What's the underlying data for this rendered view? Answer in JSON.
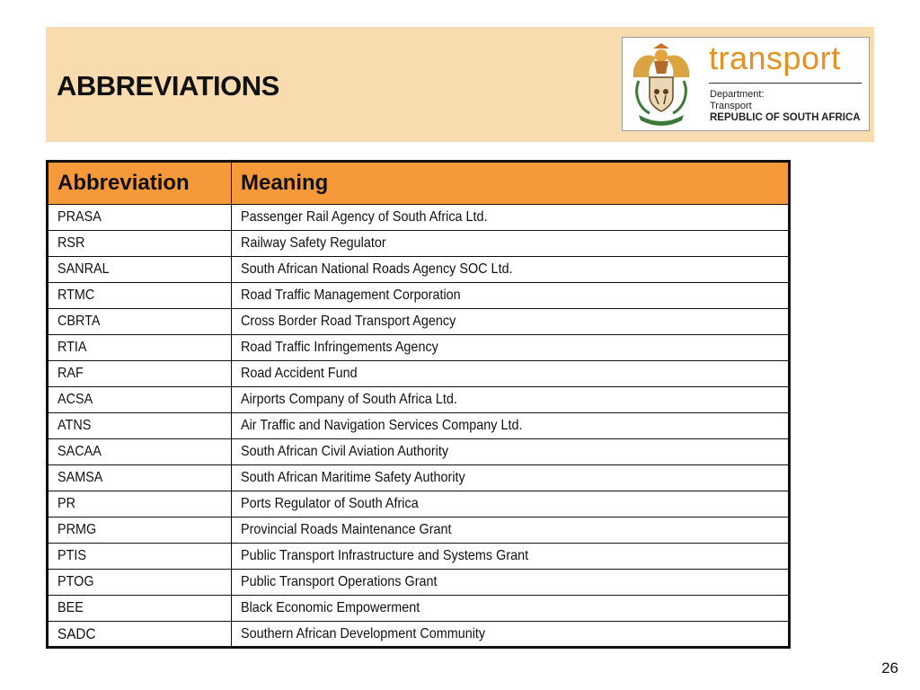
{
  "header": {
    "title": "ABBREVIATIONS"
  },
  "logo": {
    "wordmark": "transport",
    "line1": "Department:",
    "line2": "Transport",
    "line3": "REPUBLIC OF SOUTH AFRICA",
    "colors": {
      "wordmark": "#e69126",
      "band": "#f9dbb0"
    }
  },
  "table": {
    "headers": [
      "Abbreviation",
      "Meaning"
    ],
    "header_color": "#f6993a",
    "rows": [
      {
        "abbr": "PRASA",
        "meaning": "Passenger Rail Agency of South Africa Ltd."
      },
      {
        "abbr": "RSR",
        "meaning": "Railway Safety Regulator"
      },
      {
        "abbr": "SANRAL",
        "meaning": "South African National Roads Agency SOC Ltd."
      },
      {
        "abbr": "RTMC",
        "meaning": "Road Traffic Management Corporation"
      },
      {
        "abbr": "CBRTA",
        "meaning": "Cross Border Road Transport Agency"
      },
      {
        "abbr": "RTIA",
        "meaning": "Road Traffic Infringements Agency"
      },
      {
        "abbr": "RAF",
        "meaning": "Road Accident Fund"
      },
      {
        "abbr": "ACSA",
        "meaning": "Airports Company of South Africa Ltd."
      },
      {
        "abbr": "ATNS",
        "meaning": "Air Traffic and Navigation Services Company Ltd."
      },
      {
        "abbr": "SACAA",
        "meaning": "South African Civil Aviation Authority"
      },
      {
        "abbr": "SAMSA",
        "meaning": "South African Maritime Safety Authority"
      },
      {
        "abbr": "PR",
        "meaning": "Ports Regulator of South Africa"
      },
      {
        "abbr": "PRMG",
        "meaning": "Provincial Roads Maintenance Grant"
      },
      {
        "abbr": "PTIS",
        "meaning": "Public Transport Infrastructure and Systems Grant"
      },
      {
        "abbr": "PTOG",
        "meaning": "Public Transport Operations Grant"
      },
      {
        "abbr": "BEE",
        "meaning": "Black Economic Empowerment"
      },
      {
        "abbr": "SADC",
        "meaning": "Southern African Development Community"
      }
    ]
  },
  "footer": {
    "page_number": "26"
  }
}
